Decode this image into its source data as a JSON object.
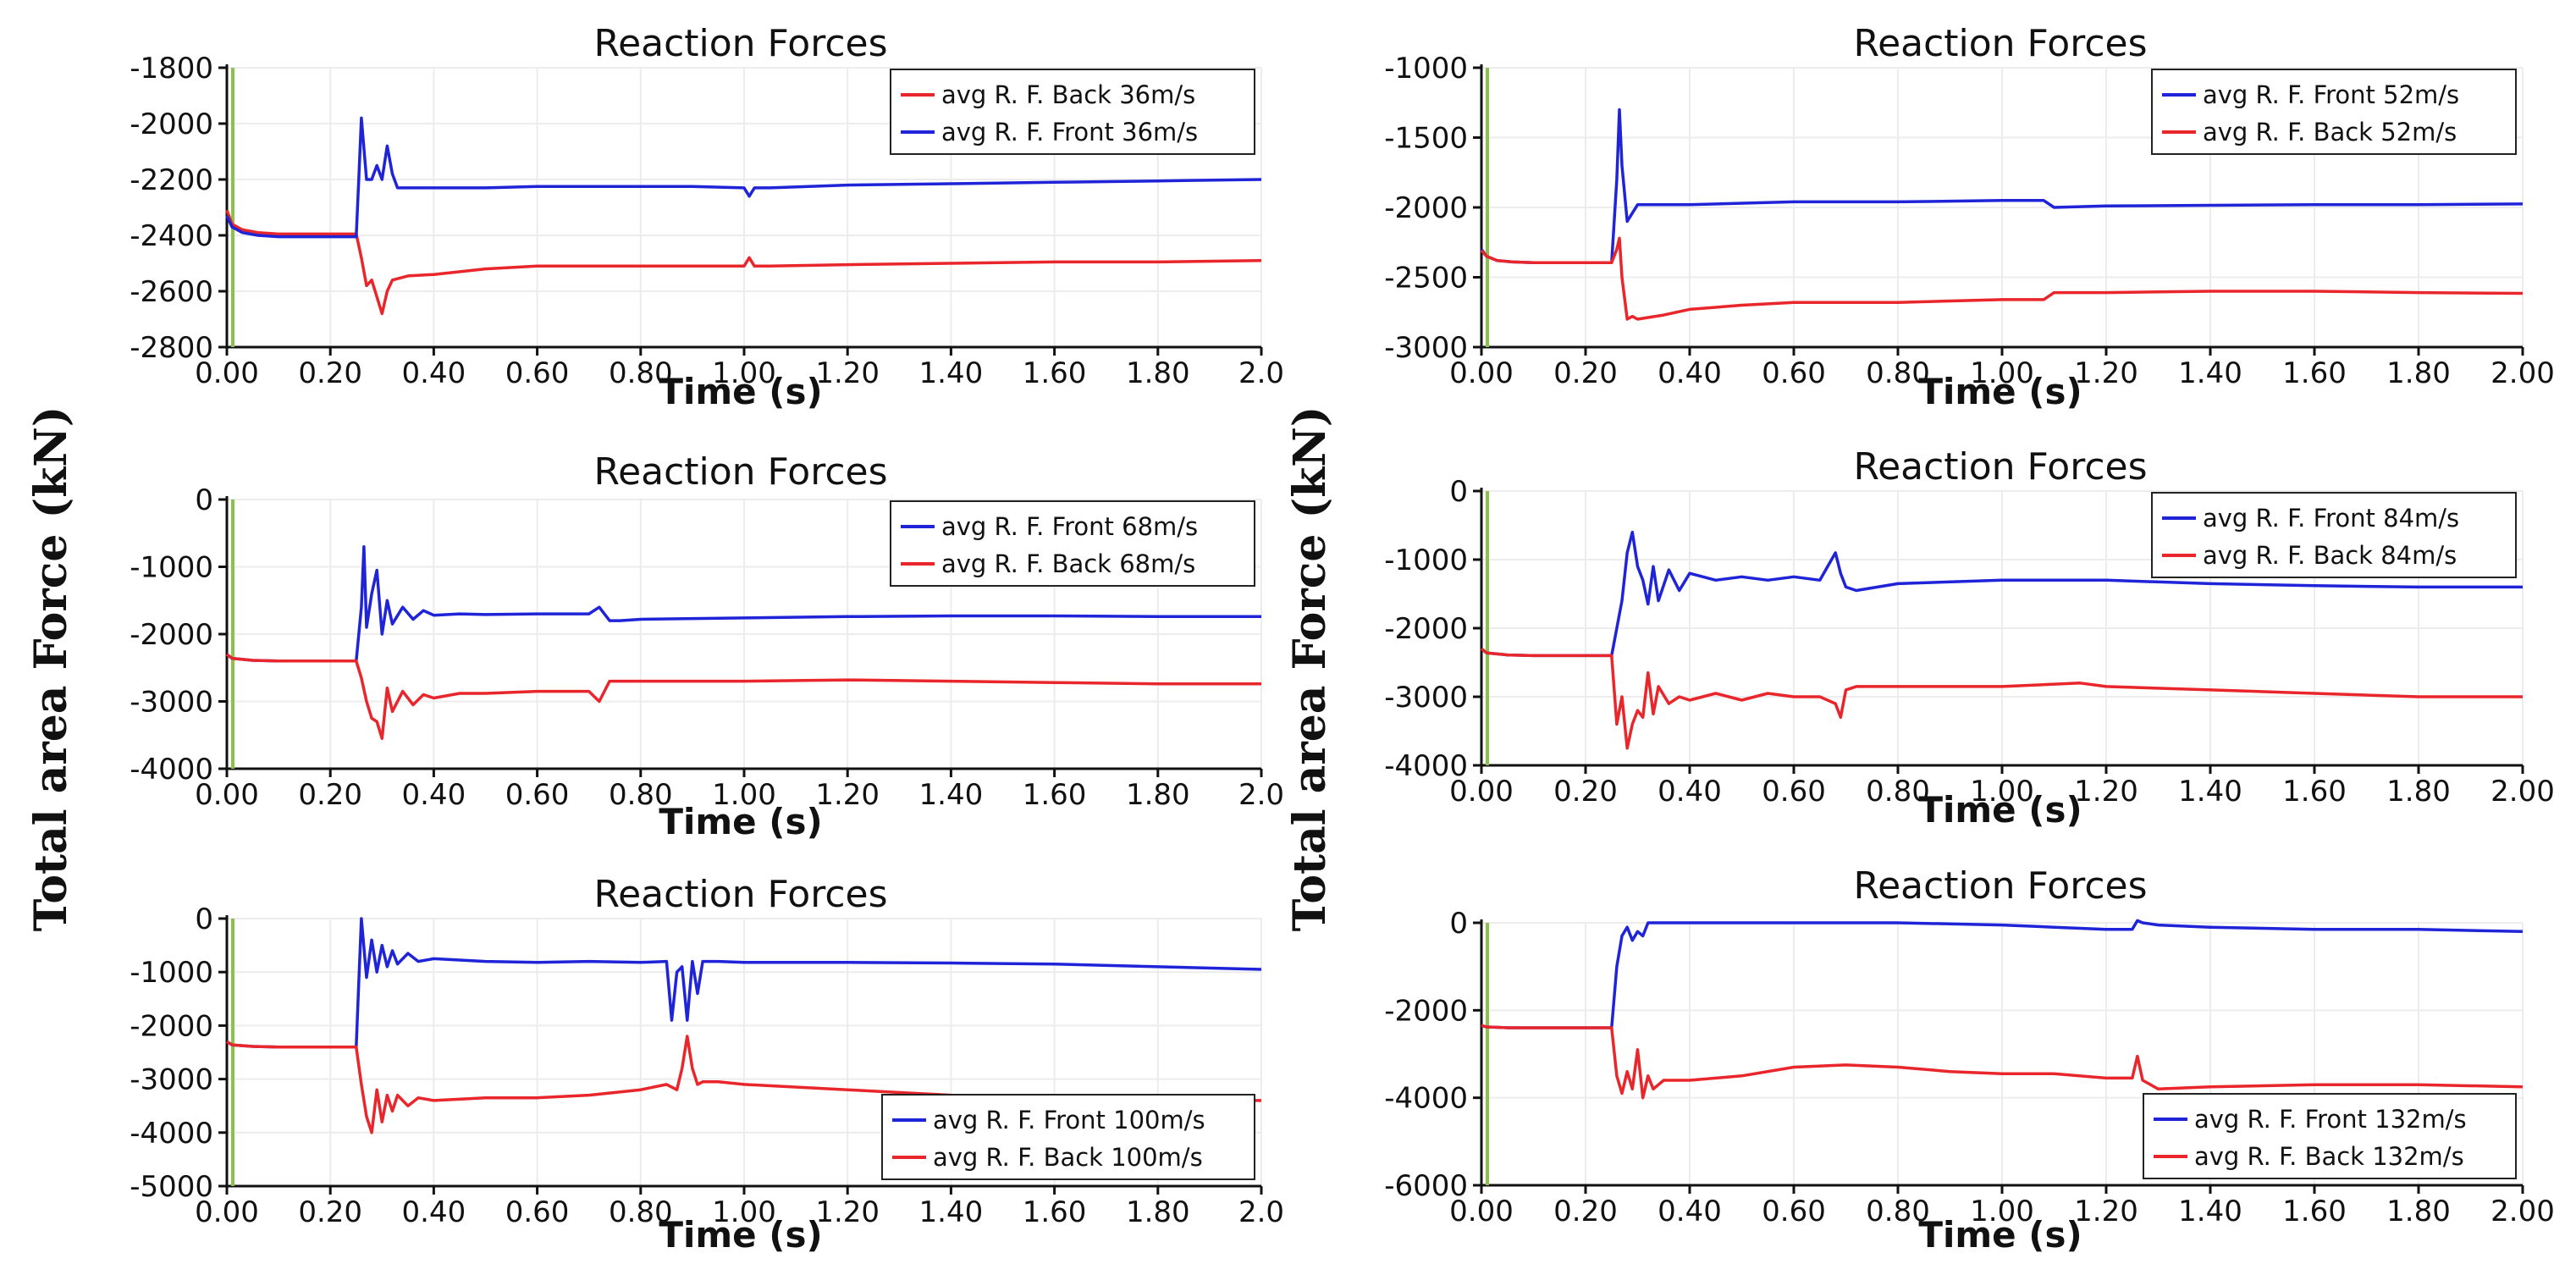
{
  "figure": {
    "ylabel_left": "Total area Force (kN)",
    "ylabel_right": "Total area Force (kN)"
  },
  "chart_data": [
    {
      "type": "line",
      "title": "Reaction Forces",
      "xlabel": "Time (s)",
      "ylabel": "Total area Force (kN)",
      "xlim": [
        0,
        2.0
      ],
      "ylim": [
        -2800,
        -1800
      ],
      "xticks": [
        "0.00",
        "0.20",
        "0.40",
        "0.60",
        "0.80",
        "1.00",
        "1.20",
        "1.40",
        "1.60",
        "1.80",
        "2.0"
      ],
      "yticks": [
        "-1800",
        "-2000",
        "-2200",
        "-2400",
        "-2600",
        "-2800"
      ],
      "legend_position": "top-right",
      "series": [
        {
          "name": "avg R. F. Back 36m/s",
          "color": "#e8262b",
          "x": [
            0,
            0.01,
            0.03,
            0.06,
            0.1,
            0.2,
            0.25,
            0.26,
            0.27,
            0.28,
            0.29,
            0.3,
            0.31,
            0.32,
            0.35,
            0.4,
            0.5,
            0.6,
            0.7,
            0.8,
            0.9,
            1.0,
            1.01,
            1.02,
            1.05,
            1.2,
            1.4,
            1.6,
            1.8,
            2.0
          ],
          "y": [
            -2310,
            -2360,
            -2380,
            -2390,
            -2395,
            -2395,
            -2395,
            -2480,
            -2580,
            -2560,
            -2620,
            -2680,
            -2600,
            -2560,
            -2545,
            -2540,
            -2520,
            -2510,
            -2510,
            -2510,
            -2510,
            -2510,
            -2480,
            -2510,
            -2510,
            -2505,
            -2500,
            -2495,
            -2495,
            -2490
          ]
        },
        {
          "name": "avg R. F. Front 36m/s",
          "color": "#1f24d8",
          "x": [
            0,
            0.01,
            0.03,
            0.06,
            0.1,
            0.2,
            0.25,
            0.255,
            0.26,
            0.27,
            0.28,
            0.29,
            0.3,
            0.31,
            0.32,
            0.33,
            0.35,
            0.4,
            0.5,
            0.6,
            0.7,
            0.8,
            0.9,
            1.0,
            1.01,
            1.02,
            1.05,
            1.2,
            1.4,
            1.6,
            1.8,
            2.0
          ],
          "y": [
            -2330,
            -2370,
            -2390,
            -2400,
            -2405,
            -2405,
            -2405,
            -2200,
            -1980,
            -2200,
            -2200,
            -2150,
            -2200,
            -2080,
            -2180,
            -2230,
            -2230,
            -2230,
            -2230,
            -2225,
            -2225,
            -2225,
            -2225,
            -2230,
            -2260,
            -2230,
            -2230,
            -2220,
            -2215,
            -2210,
            -2205,
            -2200
          ]
        }
      ]
    },
    {
      "type": "line",
      "title": "Reaction Forces",
      "xlabel": "Time (s)",
      "ylabel": "Total area Force (kN)",
      "xlim": [
        0,
        2.0
      ],
      "ylim": [
        -3000,
        -1000
      ],
      "xticks": [
        "0.00",
        "0.20",
        "0.40",
        "0.60",
        "0.80",
        "1.00",
        "1.20",
        "1.40",
        "1.60",
        "1.80",
        "2.00"
      ],
      "yticks": [
        "-1000",
        "-1500",
        "-2000",
        "-2500",
        "-3000"
      ],
      "legend_position": "top-right",
      "series": [
        {
          "name": "avg R. F. Front 52m/s",
          "color": "#1f24d8",
          "x": [
            0,
            0.01,
            0.03,
            0.06,
            0.1,
            0.2,
            0.25,
            0.26,
            0.265,
            0.27,
            0.28,
            0.3,
            0.35,
            0.4,
            0.6,
            0.8,
            1.0,
            1.08,
            1.1,
            1.2,
            1.4,
            1.6,
            1.8,
            2.0
          ],
          "y": [
            -2300,
            -2350,
            -2380,
            -2390,
            -2395,
            -2395,
            -2395,
            -1800,
            -1300,
            -1700,
            -2100,
            -1980,
            -1980,
            -1980,
            -1960,
            -1960,
            -1950,
            -1950,
            -2000,
            -1990,
            -1985,
            -1980,
            -1980,
            -1975
          ]
        },
        {
          "name": "avg R. F. Back 52m/s",
          "color": "#e8262b",
          "x": [
            0,
            0.01,
            0.03,
            0.06,
            0.1,
            0.2,
            0.25,
            0.26,
            0.265,
            0.27,
            0.28,
            0.29,
            0.3,
            0.35,
            0.4,
            0.5,
            0.6,
            0.8,
            1.0,
            1.08,
            1.1,
            1.2,
            1.4,
            1.6,
            1.8,
            2.0
          ],
          "y": [
            -2310,
            -2350,
            -2380,
            -2390,
            -2395,
            -2395,
            -2395,
            -2300,
            -2220,
            -2500,
            -2800,
            -2780,
            -2800,
            -2770,
            -2730,
            -2700,
            -2680,
            -2680,
            -2660,
            -2660,
            -2610,
            -2610,
            -2600,
            -2600,
            -2610,
            -2615
          ]
        }
      ]
    },
    {
      "type": "line",
      "title": "Reaction Forces",
      "xlabel": "Time (s)",
      "ylabel": "Total area Force (kN)",
      "xlim": [
        0,
        2.0
      ],
      "ylim": [
        -4000,
        0
      ],
      "xticks": [
        "0.00",
        "0.20",
        "0.40",
        "0.60",
        "0.80",
        "1.00",
        "1.20",
        "1.40",
        "1.60",
        "1.80",
        "2.0"
      ],
      "yticks": [
        "0",
        "-1000",
        "-2000",
        "-3000",
        "-4000"
      ],
      "legend_position": "top-right",
      "series": [
        {
          "name": "avg R. F. Front 68m/s",
          "color": "#1f24d8",
          "x": [
            0,
            0.01,
            0.05,
            0.1,
            0.2,
            0.25,
            0.26,
            0.265,
            0.27,
            0.28,
            0.29,
            0.3,
            0.31,
            0.32,
            0.34,
            0.36,
            0.38,
            0.4,
            0.45,
            0.5,
            0.6,
            0.7,
            0.72,
            0.74,
            0.76,
            0.8,
            1.0,
            1.2,
            1.4,
            1.6,
            1.8,
            2.0
          ],
          "y": [
            -2300,
            -2360,
            -2390,
            -2400,
            -2400,
            -2400,
            -1600,
            -700,
            -1900,
            -1400,
            -1050,
            -2000,
            -1500,
            -1850,
            -1600,
            -1780,
            -1650,
            -1720,
            -1700,
            -1710,
            -1700,
            -1700,
            -1600,
            -1800,
            -1800,
            -1780,
            -1760,
            -1740,
            -1730,
            -1730,
            -1740,
            -1740
          ]
        },
        {
          "name": "avg R. F. Back 68m/s",
          "color": "#e8262b",
          "x": [
            0,
            0.01,
            0.05,
            0.1,
            0.2,
            0.25,
            0.26,
            0.27,
            0.28,
            0.29,
            0.3,
            0.31,
            0.32,
            0.34,
            0.36,
            0.38,
            0.4,
            0.45,
            0.5,
            0.6,
            0.7,
            0.72,
            0.74,
            0.76,
            0.8,
            1.0,
            1.2,
            1.4,
            1.6,
            1.8,
            2.0
          ],
          "y": [
            -2300,
            -2360,
            -2390,
            -2400,
            -2400,
            -2400,
            -2650,
            -3000,
            -3250,
            -3300,
            -3550,
            -2800,
            -3150,
            -2850,
            -3050,
            -2900,
            -2950,
            -2880,
            -2880,
            -2850,
            -2850,
            -3000,
            -2700,
            -2700,
            -2700,
            -2700,
            -2680,
            -2700,
            -2720,
            -2740,
            -2740
          ]
        }
      ]
    },
    {
      "type": "line",
      "title": "Reaction Forces",
      "xlabel": "Time (s)",
      "ylabel": "Total area Force (kN)",
      "xlim": [
        0,
        2.0
      ],
      "ylim": [
        -4000,
        0
      ],
      "xticks": [
        "0.00",
        "0.20",
        "0.40",
        "0.60",
        "0.80",
        "1.00",
        "1.20",
        "1.40",
        "1.60",
        "1.80",
        "2.00"
      ],
      "yticks": [
        "0",
        "-1000",
        "-2000",
        "-3000",
        "-4000"
      ],
      "legend_position": "top-right",
      "series": [
        {
          "name": "avg R. F. Front 84m/s",
          "color": "#1f24d8",
          "x": [
            0,
            0.01,
            0.05,
            0.1,
            0.2,
            0.25,
            0.27,
            0.28,
            0.29,
            0.3,
            0.31,
            0.32,
            0.33,
            0.34,
            0.36,
            0.38,
            0.4,
            0.45,
            0.5,
            0.55,
            0.6,
            0.65,
            0.68,
            0.69,
            0.7,
            0.72,
            0.8,
            1.0,
            1.2,
            1.4,
            1.6,
            1.8,
            2.0
          ],
          "y": [
            -2300,
            -2360,
            -2390,
            -2400,
            -2400,
            -2400,
            -1600,
            -900,
            -600,
            -1100,
            -1300,
            -1650,
            -1100,
            -1600,
            -1150,
            -1450,
            -1200,
            -1300,
            -1250,
            -1300,
            -1250,
            -1300,
            -900,
            -1200,
            -1400,
            -1450,
            -1350,
            -1300,
            -1300,
            -1350,
            -1380,
            -1400,
            -1400
          ]
        },
        {
          "name": "avg R. F. Back 84m/s",
          "color": "#e8262b",
          "x": [
            0,
            0.01,
            0.05,
            0.1,
            0.2,
            0.25,
            0.26,
            0.27,
            0.28,
            0.29,
            0.3,
            0.31,
            0.32,
            0.33,
            0.34,
            0.36,
            0.38,
            0.4,
            0.45,
            0.5,
            0.55,
            0.6,
            0.65,
            0.68,
            0.69,
            0.7,
            0.72,
            0.8,
            1.0,
            1.15,
            1.2,
            1.4,
            1.6,
            1.8,
            2.0
          ],
          "y": [
            -2300,
            -2360,
            -2390,
            -2400,
            -2400,
            -2400,
            -3400,
            -3000,
            -3750,
            -3400,
            -3200,
            -3300,
            -2650,
            -3250,
            -2850,
            -3100,
            -3000,
            -3050,
            -2950,
            -3050,
            -2950,
            -3000,
            -3000,
            -3100,
            -3300,
            -2900,
            -2850,
            -2850,
            -2850,
            -2800,
            -2850,
            -2900,
            -2950,
            -3000,
            -3000
          ]
        }
      ]
    },
    {
      "type": "line",
      "title": "Reaction Forces",
      "xlabel": "Time (s)",
      "ylabel": "Total area Force (kN)",
      "xlim": [
        0,
        2.0
      ],
      "ylim": [
        -5000,
        0
      ],
      "xticks": [
        "0.00",
        "0.20",
        "0.40",
        "0.60",
        "0.80",
        "1.00",
        "1.20",
        "1.40",
        "1.60",
        "1.80",
        "2.0"
      ],
      "yticks": [
        "0",
        "-1000",
        "-2000",
        "-3000",
        "-4000",
        "-5000"
      ],
      "legend_position": "bottom-right",
      "series": [
        {
          "name": "avg R. F. Front 100m/s",
          "color": "#1f24d8",
          "x": [
            0,
            0.01,
            0.05,
            0.1,
            0.2,
            0.25,
            0.255,
            0.26,
            0.27,
            0.28,
            0.29,
            0.3,
            0.31,
            0.32,
            0.33,
            0.35,
            0.37,
            0.4,
            0.5,
            0.6,
            0.7,
            0.8,
            0.85,
            0.86,
            0.87,
            0.88,
            0.89,
            0.9,
            0.91,
            0.92,
            0.95,
            1.0,
            1.2,
            1.4,
            1.6,
            1.8,
            2.0
          ],
          "y": [
            -2300,
            -2360,
            -2390,
            -2400,
            -2400,
            -2400,
            -1200,
            0,
            -1100,
            -400,
            -1000,
            -500,
            -900,
            -600,
            -850,
            -650,
            -800,
            -750,
            -800,
            -820,
            -800,
            -820,
            -800,
            -1900,
            -1000,
            -900,
            -1900,
            -800,
            -1400,
            -800,
            -800,
            -820,
            -820,
            -830,
            -850,
            -900,
            -950
          ]
        },
        {
          "name": "avg R. F. Back 100m/s",
          "color": "#e8262b",
          "x": [
            0,
            0.01,
            0.05,
            0.1,
            0.2,
            0.25,
            0.26,
            0.27,
            0.28,
            0.29,
            0.3,
            0.31,
            0.32,
            0.33,
            0.35,
            0.37,
            0.4,
            0.5,
            0.6,
            0.7,
            0.8,
            0.85,
            0.87,
            0.88,
            0.89,
            0.9,
            0.91,
            0.92,
            0.95,
            1.0,
            1.2,
            1.4,
            1.6,
            1.8,
            2.0
          ],
          "y": [
            -2300,
            -2360,
            -2390,
            -2400,
            -2400,
            -2400,
            -3100,
            -3700,
            -4000,
            -3200,
            -3800,
            -3300,
            -3600,
            -3300,
            -3500,
            -3350,
            -3400,
            -3350,
            -3350,
            -3300,
            -3200,
            -3100,
            -3200,
            -2800,
            -2200,
            -2800,
            -3100,
            -3050,
            -3050,
            -3100,
            -3200,
            -3300,
            -3350,
            -3400,
            -3400
          ]
        }
      ]
    },
    {
      "type": "line",
      "title": "Reaction Forces",
      "xlabel": "Time (s)",
      "ylabel": "Total area Force (kN)",
      "xlim": [
        0,
        2.0
      ],
      "ylim": [
        -6000,
        0
      ],
      "xticks": [
        "0.00",
        "0.20",
        "0.40",
        "0.60",
        "0.80",
        "1.00",
        "1.20",
        "1.40",
        "1.60",
        "1.80",
        "2.00"
      ],
      "yticks": [
        "0",
        "-2000",
        "-4000",
        "-6000"
      ],
      "legend_position": "bottom-right",
      "series": [
        {
          "name": "avg R. F. Front 132m/s",
          "color": "#1f24d8",
          "x": [
            0,
            0.01,
            0.05,
            0.1,
            0.2,
            0.25,
            0.26,
            0.27,
            0.28,
            0.29,
            0.3,
            0.31,
            0.32,
            0.35,
            0.4,
            0.6,
            0.8,
            1.0,
            1.1,
            1.2,
            1.25,
            1.26,
            1.27,
            1.3,
            1.4,
            1.6,
            1.8,
            2.0
          ],
          "y": [
            -2350,
            -2380,
            -2400,
            -2400,
            -2400,
            -2400,
            -1000,
            -300,
            -100,
            -400,
            -200,
            -300,
            0,
            0,
            0,
            0,
            0,
            -50,
            -100,
            -150,
            -150,
            50,
            0,
            -50,
            -100,
            -150,
            -150,
            -200
          ]
        },
        {
          "name": "avg R. F. Back 132m/s",
          "color": "#e8262b",
          "x": [
            0,
            0.01,
            0.05,
            0.1,
            0.2,
            0.25,
            0.26,
            0.27,
            0.28,
            0.29,
            0.3,
            0.31,
            0.32,
            0.33,
            0.35,
            0.4,
            0.5,
            0.6,
            0.7,
            0.8,
            0.9,
            1.0,
            1.1,
            1.2,
            1.25,
            1.26,
            1.27,
            1.3,
            1.4,
            1.6,
            1.8,
            2.0
          ],
          "y": [
            -2350,
            -2380,
            -2400,
            -2400,
            -2400,
            -2400,
            -3500,
            -3900,
            -3400,
            -3800,
            -2900,
            -4000,
            -3500,
            -3800,
            -3600,
            -3600,
            -3500,
            -3300,
            -3250,
            -3300,
            -3400,
            -3450,
            -3450,
            -3550,
            -3550,
            -3050,
            -3600,
            -3800,
            -3750,
            -3700,
            -3700,
            -3750
          ]
        }
      ]
    }
  ]
}
